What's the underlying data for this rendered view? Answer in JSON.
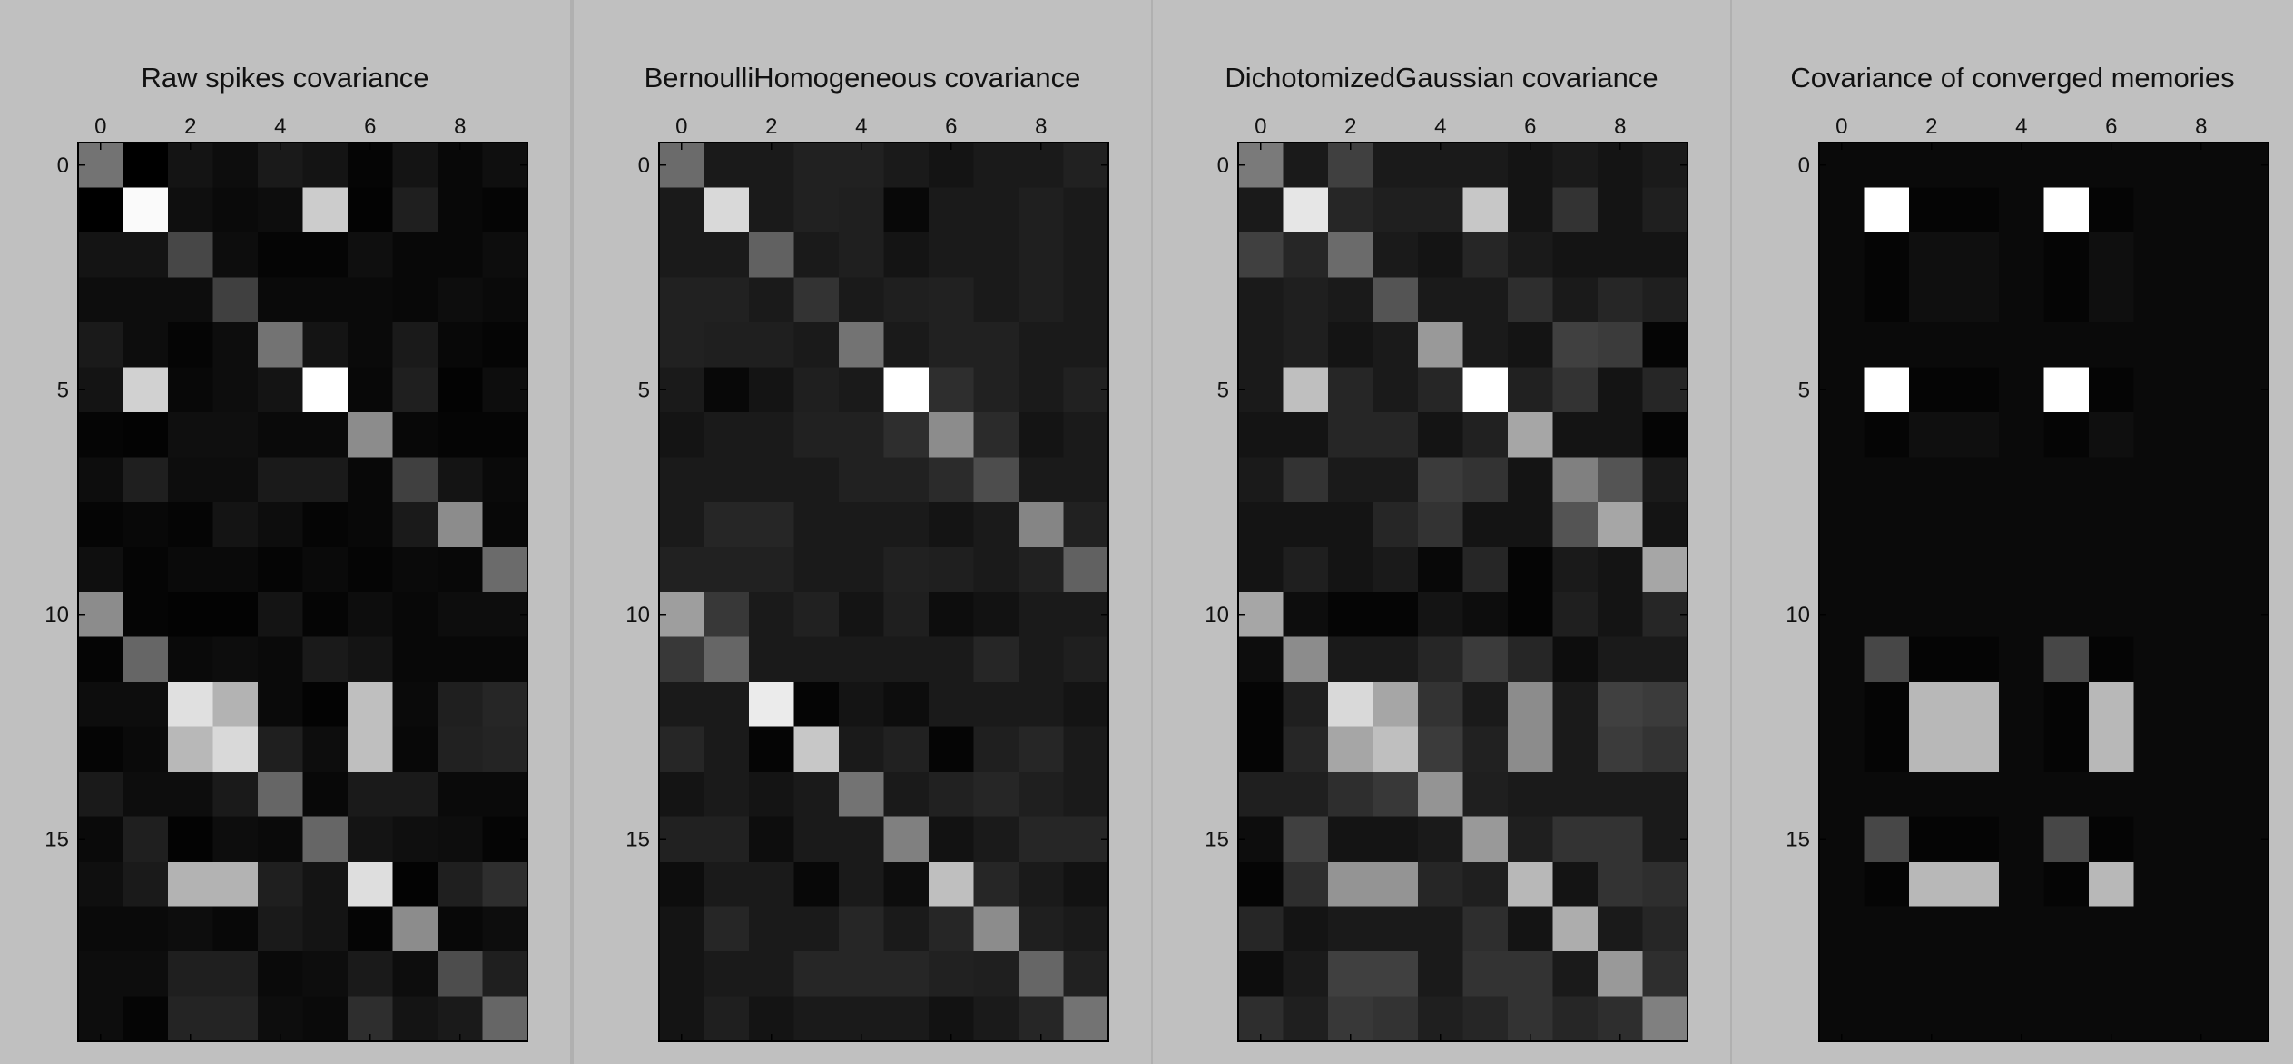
{
  "chart_data": [
    {
      "type": "heatmap",
      "title": "Raw spikes covariance",
      "xticks": [
        0,
        2,
        4,
        6,
        8
      ],
      "yticks": [
        0,
        5,
        10,
        15
      ],
      "n_rows": 20,
      "n_cols": 10,
      "colormap": "gray",
      "values": [
        [
          0.45,
          0.0,
          0.08,
          0.05,
          0.1,
          0.08,
          0.02,
          0.08,
          0.03,
          0.06
        ],
        [
          0.0,
          0.98,
          0.06,
          0.04,
          0.05,
          0.8,
          0.01,
          0.12,
          0.03,
          0.02
        ],
        [
          0.08,
          0.08,
          0.28,
          0.05,
          0.02,
          0.02,
          0.06,
          0.03,
          0.03,
          0.05
        ],
        [
          0.05,
          0.05,
          0.05,
          0.25,
          0.04,
          0.04,
          0.04,
          0.03,
          0.05,
          0.04
        ],
        [
          0.1,
          0.05,
          0.02,
          0.05,
          0.45,
          0.08,
          0.04,
          0.1,
          0.03,
          0.02
        ],
        [
          0.08,
          0.82,
          0.03,
          0.05,
          0.08,
          1.0,
          0.03,
          0.12,
          0.01,
          0.05
        ],
        [
          0.02,
          0.01,
          0.06,
          0.06,
          0.04,
          0.04,
          0.55,
          0.03,
          0.02,
          0.02
        ],
        [
          0.05,
          0.12,
          0.05,
          0.05,
          0.1,
          0.1,
          0.03,
          0.25,
          0.08,
          0.04
        ],
        [
          0.02,
          0.03,
          0.02,
          0.08,
          0.05,
          0.02,
          0.03,
          0.1,
          0.55,
          0.03
        ],
        [
          0.06,
          0.02,
          0.04,
          0.04,
          0.02,
          0.04,
          0.02,
          0.04,
          0.03,
          0.42
        ],
        [
          0.55,
          0.02,
          0.01,
          0.01,
          0.08,
          0.02,
          0.05,
          0.03,
          0.05,
          0.05
        ],
        [
          0.02,
          0.4,
          0.04,
          0.05,
          0.04,
          0.1,
          0.08,
          0.03,
          0.03,
          0.03
        ],
        [
          0.05,
          0.05,
          0.88,
          0.7,
          0.04,
          0.01,
          0.75,
          0.04,
          0.12,
          0.15
        ],
        [
          0.02,
          0.04,
          0.72,
          0.85,
          0.12,
          0.05,
          0.75,
          0.03,
          0.13,
          0.14
        ],
        [
          0.1,
          0.05,
          0.05,
          0.1,
          0.4,
          0.03,
          0.1,
          0.1,
          0.04,
          0.04
        ],
        [
          0.04,
          0.12,
          0.01,
          0.05,
          0.04,
          0.4,
          0.08,
          0.06,
          0.05,
          0.02
        ],
        [
          0.06,
          0.1,
          0.7,
          0.7,
          0.12,
          0.08,
          0.87,
          0.01,
          0.12,
          0.18
        ],
        [
          0.04,
          0.04,
          0.05,
          0.03,
          0.1,
          0.08,
          0.02,
          0.55,
          0.03,
          0.05
        ],
        [
          0.05,
          0.05,
          0.12,
          0.12,
          0.04,
          0.05,
          0.1,
          0.05,
          0.3,
          0.12
        ],
        [
          0.05,
          0.02,
          0.14,
          0.14,
          0.05,
          0.04,
          0.18,
          0.08,
          0.1,
          0.4
        ]
      ]
    },
    {
      "type": "heatmap",
      "title": "BernoulliHomogeneous covariance",
      "xticks": [
        0,
        2,
        4,
        6,
        8
      ],
      "yticks": [
        0,
        5,
        10,
        15
      ],
      "n_rows": 20,
      "n_cols": 10,
      "colormap": "gray",
      "values": [
        [
          0.42,
          0.1,
          0.1,
          0.13,
          0.13,
          0.1,
          0.08,
          0.1,
          0.1,
          0.13
        ],
        [
          0.1,
          0.85,
          0.1,
          0.13,
          0.12,
          0.03,
          0.1,
          0.1,
          0.12,
          0.1
        ],
        [
          0.1,
          0.1,
          0.38,
          0.1,
          0.12,
          0.08,
          0.1,
          0.1,
          0.12,
          0.1
        ],
        [
          0.13,
          0.13,
          0.1,
          0.2,
          0.1,
          0.12,
          0.13,
          0.1,
          0.12,
          0.1
        ],
        [
          0.13,
          0.12,
          0.12,
          0.1,
          0.45,
          0.1,
          0.13,
          0.13,
          0.1,
          0.1
        ],
        [
          0.1,
          0.03,
          0.08,
          0.12,
          0.1,
          1.0,
          0.18,
          0.13,
          0.1,
          0.13
        ],
        [
          0.08,
          0.1,
          0.1,
          0.13,
          0.13,
          0.18,
          0.55,
          0.17,
          0.08,
          0.1
        ],
        [
          0.1,
          0.1,
          0.1,
          0.1,
          0.13,
          0.13,
          0.17,
          0.3,
          0.1,
          0.1
        ],
        [
          0.1,
          0.15,
          0.15,
          0.1,
          0.1,
          0.1,
          0.08,
          0.1,
          0.52,
          0.13
        ],
        [
          0.13,
          0.13,
          0.13,
          0.1,
          0.1,
          0.13,
          0.12,
          0.1,
          0.13,
          0.38
        ],
        [
          0.62,
          0.22,
          0.1,
          0.13,
          0.08,
          0.12,
          0.05,
          0.07,
          0.1,
          0.1
        ],
        [
          0.22,
          0.4,
          0.1,
          0.1,
          0.1,
          0.1,
          0.1,
          0.15,
          0.1,
          0.12
        ],
        [
          0.1,
          0.1,
          0.92,
          0.02,
          0.08,
          0.05,
          0.1,
          0.1,
          0.1,
          0.08
        ],
        [
          0.15,
          0.1,
          0.02,
          0.78,
          0.1,
          0.13,
          0.02,
          0.12,
          0.15,
          0.1
        ],
        [
          0.08,
          0.1,
          0.08,
          0.1,
          0.45,
          0.1,
          0.13,
          0.15,
          0.12,
          0.1
        ],
        [
          0.13,
          0.13,
          0.05,
          0.1,
          0.1,
          0.5,
          0.07,
          0.1,
          0.15,
          0.15
        ],
        [
          0.05,
          0.1,
          0.1,
          0.03,
          0.1,
          0.05,
          0.75,
          0.15,
          0.1,
          0.07
        ],
        [
          0.08,
          0.15,
          0.1,
          0.1,
          0.15,
          0.1,
          0.15,
          0.55,
          0.12,
          0.1
        ],
        [
          0.08,
          0.1,
          0.1,
          0.15,
          0.15,
          0.15,
          0.13,
          0.12,
          0.4,
          0.13
        ],
        [
          0.08,
          0.12,
          0.08,
          0.1,
          0.1,
          0.1,
          0.07,
          0.1,
          0.15,
          0.45
        ]
      ]
    },
    {
      "type": "heatmap",
      "title": "DichotomizedGaussian covariance",
      "xticks": [
        0,
        2,
        4,
        6,
        8
      ],
      "yticks": [
        0,
        5,
        10,
        15
      ],
      "n_rows": 20,
      "n_cols": 10,
      "colormap": "gray",
      "values": [
        [
          0.48,
          0.1,
          0.25,
          0.1,
          0.1,
          0.1,
          0.08,
          0.1,
          0.08,
          0.1
        ],
        [
          0.1,
          0.9,
          0.15,
          0.12,
          0.12,
          0.78,
          0.08,
          0.2,
          0.08,
          0.12
        ],
        [
          0.25,
          0.15,
          0.42,
          0.1,
          0.08,
          0.15,
          0.1,
          0.08,
          0.08,
          0.08
        ],
        [
          0.1,
          0.12,
          0.1,
          0.33,
          0.1,
          0.1,
          0.18,
          0.1,
          0.15,
          0.12
        ],
        [
          0.1,
          0.12,
          0.08,
          0.1,
          0.6,
          0.1,
          0.08,
          0.25,
          0.23,
          0.02
        ],
        [
          0.1,
          0.75,
          0.15,
          0.1,
          0.15,
          1.0,
          0.13,
          0.2,
          0.08,
          0.15
        ],
        [
          0.08,
          0.08,
          0.15,
          0.15,
          0.08,
          0.13,
          0.65,
          0.08,
          0.08,
          0.02
        ],
        [
          0.1,
          0.2,
          0.1,
          0.1,
          0.23,
          0.2,
          0.08,
          0.5,
          0.33,
          0.1
        ],
        [
          0.08,
          0.08,
          0.08,
          0.15,
          0.2,
          0.08,
          0.08,
          0.33,
          0.65,
          0.08
        ],
        [
          0.08,
          0.12,
          0.08,
          0.1,
          0.03,
          0.15,
          0.02,
          0.1,
          0.08,
          0.65
        ],
        [
          0.65,
          0.05,
          0.02,
          0.02,
          0.08,
          0.05,
          0.02,
          0.12,
          0.08,
          0.15
        ],
        [
          0.05,
          0.55,
          0.1,
          0.1,
          0.15,
          0.23,
          0.15,
          0.05,
          0.1,
          0.1
        ],
        [
          0.02,
          0.12,
          0.85,
          0.65,
          0.2,
          0.1,
          0.55,
          0.1,
          0.25,
          0.23
        ],
        [
          0.02,
          0.15,
          0.65,
          0.75,
          0.23,
          0.13,
          0.55,
          0.1,
          0.23,
          0.2
        ],
        [
          0.12,
          0.12,
          0.18,
          0.22,
          0.58,
          0.12,
          0.1,
          0.1,
          0.1,
          0.1
        ],
        [
          0.05,
          0.25,
          0.08,
          0.08,
          0.1,
          0.6,
          0.12,
          0.2,
          0.2,
          0.1
        ],
        [
          0.02,
          0.18,
          0.58,
          0.58,
          0.15,
          0.12,
          0.72,
          0.08,
          0.2,
          0.18
        ],
        [
          0.15,
          0.08,
          0.1,
          0.1,
          0.1,
          0.18,
          0.08,
          0.68,
          0.1,
          0.15
        ],
        [
          0.05,
          0.1,
          0.25,
          0.25,
          0.1,
          0.2,
          0.2,
          0.1,
          0.6,
          0.18
        ],
        [
          0.18,
          0.12,
          0.22,
          0.2,
          0.12,
          0.15,
          0.2,
          0.15,
          0.18,
          0.5
        ]
      ]
    },
    {
      "type": "heatmap",
      "title": "Covariance of converged memories",
      "xticks": [
        0,
        2,
        4,
        6,
        8
      ],
      "yticks": [
        0,
        5,
        10,
        15
      ],
      "n_rows": 20,
      "n_cols": 10,
      "colormap": "gray",
      "values": [
        [
          0.04,
          0.04,
          0.04,
          0.04,
          0.04,
          0.04,
          0.04,
          0.04,
          0.04,
          0.04
        ],
        [
          0.04,
          1.0,
          0.02,
          0.02,
          0.04,
          1.0,
          0.02,
          0.04,
          0.04,
          0.04
        ],
        [
          0.04,
          0.02,
          0.06,
          0.06,
          0.04,
          0.02,
          0.06,
          0.04,
          0.04,
          0.04
        ],
        [
          0.04,
          0.02,
          0.06,
          0.06,
          0.04,
          0.02,
          0.06,
          0.04,
          0.04,
          0.04
        ],
        [
          0.04,
          0.04,
          0.04,
          0.04,
          0.04,
          0.04,
          0.04,
          0.04,
          0.04,
          0.04
        ],
        [
          0.04,
          1.0,
          0.02,
          0.02,
          0.04,
          1.0,
          0.02,
          0.04,
          0.04,
          0.04
        ],
        [
          0.04,
          0.02,
          0.06,
          0.06,
          0.04,
          0.02,
          0.06,
          0.04,
          0.04,
          0.04
        ],
        [
          0.04,
          0.04,
          0.04,
          0.04,
          0.04,
          0.04,
          0.04,
          0.04,
          0.04,
          0.04
        ],
        [
          0.04,
          0.04,
          0.04,
          0.04,
          0.04,
          0.04,
          0.04,
          0.04,
          0.04,
          0.04
        ],
        [
          0.04,
          0.04,
          0.04,
          0.04,
          0.04,
          0.04,
          0.04,
          0.04,
          0.04,
          0.04
        ],
        [
          0.04,
          0.04,
          0.04,
          0.04,
          0.04,
          0.04,
          0.04,
          0.04,
          0.04,
          0.04
        ],
        [
          0.04,
          0.28,
          0.02,
          0.02,
          0.04,
          0.28,
          0.02,
          0.04,
          0.04,
          0.04
        ],
        [
          0.04,
          0.02,
          0.72,
          0.72,
          0.04,
          0.02,
          0.72,
          0.04,
          0.04,
          0.04
        ],
        [
          0.04,
          0.02,
          0.72,
          0.72,
          0.04,
          0.02,
          0.72,
          0.04,
          0.04,
          0.04
        ],
        [
          0.04,
          0.04,
          0.04,
          0.04,
          0.04,
          0.04,
          0.04,
          0.04,
          0.04,
          0.04
        ],
        [
          0.04,
          0.28,
          0.02,
          0.02,
          0.04,
          0.28,
          0.02,
          0.04,
          0.04,
          0.04
        ],
        [
          0.04,
          0.02,
          0.72,
          0.72,
          0.04,
          0.02,
          0.72,
          0.04,
          0.04,
          0.04
        ],
        [
          0.04,
          0.04,
          0.04,
          0.04,
          0.04,
          0.04,
          0.04,
          0.04,
          0.04,
          0.04
        ],
        [
          0.04,
          0.04,
          0.04,
          0.04,
          0.04,
          0.04,
          0.04,
          0.04,
          0.04,
          0.04
        ],
        [
          0.04,
          0.04,
          0.04,
          0.04,
          0.04,
          0.04,
          0.04,
          0.04,
          0.04,
          0.04
        ]
      ]
    }
  ]
}
